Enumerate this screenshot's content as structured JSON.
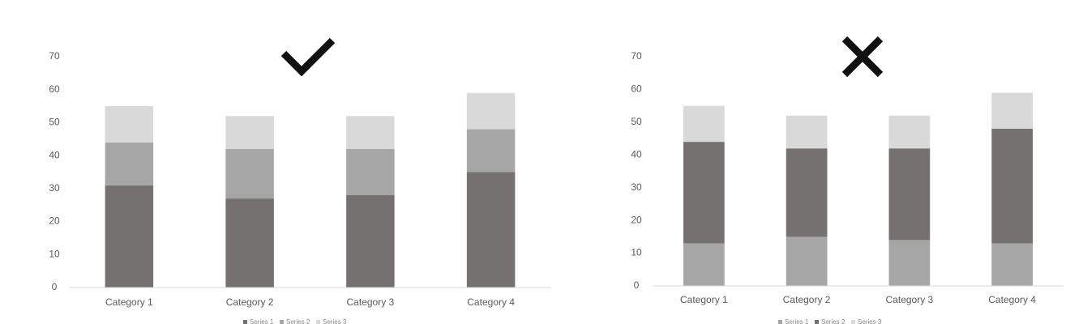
{
  "chart_data": [
    {
      "type": "stacked-bar",
      "categories": [
        "Category 1",
        "Category 2",
        "Category 3",
        "Category 4"
      ],
      "series": [
        {
          "name": "Series 1",
          "color": "#767171",
          "values": [
            31,
            27,
            28,
            35
          ]
        },
        {
          "name": "Series 2",
          "color": "#a6a6a6",
          "values": [
            13,
            15,
            14,
            13
          ]
        },
        {
          "name": "Series 3",
          "color": "#d9d9d9",
          "values": [
            11,
            10,
            10,
            11
          ]
        }
      ],
      "ylim": [
        0,
        70
      ],
      "yticks": [
        0,
        10,
        20,
        30,
        40,
        50,
        60,
        70
      ],
      "grid": false
    },
    {
      "type": "stacked-bar",
      "categories": [
        "Category 1",
        "Category 2",
        "Category 3",
        "Category 4"
      ],
      "series": [
        {
          "name": "Series 1",
          "color": "#a6a6a6",
          "values": [
            13,
            15,
            14,
            13
          ]
        },
        {
          "name": "Series 2",
          "color": "#767171",
          "values": [
            31,
            27,
            28,
            35
          ]
        },
        {
          "name": "Series 3",
          "color": "#d9d9d9",
          "values": [
            11,
            10,
            10,
            11
          ]
        }
      ],
      "ylim": [
        0,
        70
      ],
      "yticks": [
        0,
        10,
        20,
        30,
        40,
        50,
        60,
        70
      ],
      "grid": false
    }
  ]
}
